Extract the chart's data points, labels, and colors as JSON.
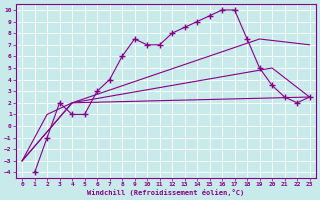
{
  "xlabel": "Windchill (Refroidissement éolien,°C)",
  "background_color": "#c8eaea",
  "line_color": "#880088",
  "xlim": [
    -0.5,
    23.5
  ],
  "ylim": [
    -4.5,
    10.5
  ],
  "xticks": [
    0,
    1,
    2,
    3,
    4,
    5,
    6,
    7,
    8,
    9,
    10,
    11,
    12,
    13,
    14,
    15,
    16,
    17,
    18,
    19,
    20,
    21,
    22,
    23
  ],
  "yticks": [
    -4,
    -3,
    -2,
    -1,
    0,
    1,
    2,
    3,
    4,
    5,
    6,
    7,
    8,
    9,
    10
  ],
  "line1_x": [
    1,
    2,
    3,
    4,
    5,
    6,
    7,
    8,
    9,
    10,
    11,
    12,
    13,
    14,
    15,
    16,
    17,
    18,
    19,
    20,
    21,
    22,
    23
  ],
  "line1_y": [
    -4,
    -1,
    2,
    1,
    1,
    3,
    4,
    6,
    7.5,
    7,
    7,
    8,
    8.5,
    9,
    9.5,
    10,
    10,
    7.5,
    5,
    3.5,
    2.5,
    2,
    2.5
  ],
  "line2_x": [
    0,
    1,
    2,
    3,
    4,
    23
  ],
  "line2_y": [
    -3,
    -1,
    1,
    1.5,
    2,
    2.5
  ],
  "line3_x": [
    0,
    4,
    20,
    23
  ],
  "line3_y": [
    -3,
    2,
    5,
    2.5
  ],
  "line4_x": [
    0,
    4,
    19,
    23
  ],
  "line4_y": [
    -3,
    2,
    7.5,
    7
  ]
}
